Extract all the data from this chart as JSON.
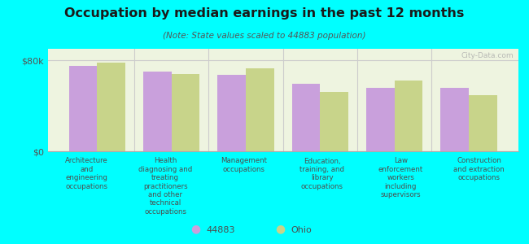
{
  "title": "Occupation by median earnings in the past 12 months",
  "subtitle": "(Note: State values scaled to 44883 population)",
  "background_color": "#00FFFF",
  "plot_bg_color": "#eef4e0",
  "bar_color_local": "#c9a0dc",
  "bar_color_state": "#c8d48a",
  "categories": [
    "Architecture\nand\nengineering\noccupations",
    "Health\ndiagnosing and\ntreating\npractitioners\nand other\ntechnical\noccupations",
    "Management\noccupations",
    "Education,\ntraining, and\nlibrary\noccupations",
    "Law\nenforcement\nworkers\nincluding\nsupervisors",
    "Construction\nand extraction\noccupations"
  ],
  "values_local": [
    75000,
    70000,
    67000,
    59000,
    56000,
    56000
  ],
  "values_state": [
    78000,
    68000,
    73000,
    52000,
    62000,
    49000
  ],
  "ylim": [
    0,
    90000
  ],
  "yticks": [
    0,
    80000
  ],
  "ytick_labels": [
    "$0",
    "$80k"
  ],
  "legend_local": "44883",
  "legend_state": "Ohio",
  "watermark": "City-Data.com",
  "xlabel_color": "#4d4d4d",
  "title_color": "#1a1a1a",
  "subtitle_color": "#555555"
}
